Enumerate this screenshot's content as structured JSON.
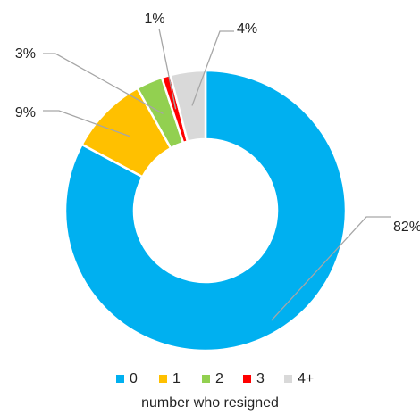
{
  "chart_data": {
    "type": "donut",
    "categories": [
      "0",
      "1",
      "2",
      "3",
      "4+"
    ],
    "values": [
      82,
      9,
      3,
      1,
      4
    ],
    "value_labels": [
      "82%",
      "9%",
      "3%",
      "1%",
      "4%"
    ],
    "colors": [
      "#00b0f0",
      "#ffc000",
      "#92d050",
      "#ff0000",
      "#d9d9d9"
    ],
    "legend_title": "number who resigned",
    "legend": "bottom"
  }
}
